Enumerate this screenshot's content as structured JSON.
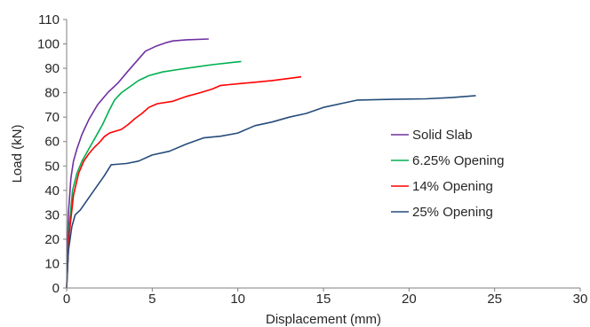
{
  "chart_data": {
    "type": "line",
    "title": "",
    "xlabel": "Displacement (mm)",
    "ylabel": "Load (kN)",
    "xlim": [
      0,
      30
    ],
    "ylim": [
      0,
      110
    ],
    "x_ticks": [
      0,
      5,
      10,
      15,
      20,
      25,
      30
    ],
    "y_ticks": [
      0,
      10,
      20,
      30,
      40,
      50,
      60,
      70,
      80,
      90,
      100,
      110
    ],
    "grid": false,
    "legend_position": "center-right",
    "series": [
      {
        "name": "Solid Slab",
        "color": "#7030A0",
        "points": [
          [
            0,
            0
          ],
          [
            0.1,
            30
          ],
          [
            0.25,
            45
          ],
          [
            0.4,
            52
          ],
          [
            0.6,
            57
          ],
          [
            0.9,
            63
          ],
          [
            1.3,
            69
          ],
          [
            1.8,
            75
          ],
          [
            2.4,
            80
          ],
          [
            3,
            84
          ],
          [
            3.6,
            89
          ],
          [
            4.1,
            93
          ],
          [
            4.6,
            97
          ],
          [
            5.2,
            99
          ],
          [
            5.8,
            100.5
          ],
          [
            6.2,
            101.2
          ],
          [
            7,
            101.7
          ],
          [
            8.3,
            102
          ]
        ]
      },
      {
        "name": "6.25% Opening",
        "color": "#00B050",
        "points": [
          [
            0,
            0
          ],
          [
            0.15,
            25
          ],
          [
            0.35,
            40
          ],
          [
            0.6,
            47
          ],
          [
            0.9,
            52
          ],
          [
            1.3,
            57
          ],
          [
            1.7,
            62
          ],
          [
            2.1,
            67
          ],
          [
            2.5,
            73
          ],
          [
            2.8,
            77
          ],
          [
            3.2,
            80
          ],
          [
            3.6,
            82
          ],
          [
            4.2,
            85
          ],
          [
            4.8,
            87
          ],
          [
            5.6,
            88.5
          ],
          [
            6.5,
            89.5
          ],
          [
            7.5,
            90.5
          ],
          [
            8.5,
            91.5
          ],
          [
            9.5,
            92.3
          ],
          [
            10.2,
            92.8
          ]
        ]
      },
      {
        "name": "14% Opening",
        "color": "#FF0000",
        "points": [
          [
            0,
            0
          ],
          [
            0.15,
            22
          ],
          [
            0.4,
            38
          ],
          [
            0.7,
            47
          ],
          [
            1,
            52
          ],
          [
            1.3,
            55
          ],
          [
            1.6,
            57.5
          ],
          [
            1.9,
            59.5
          ],
          [
            2.2,
            62
          ],
          [
            2.5,
            63.5
          ],
          [
            3.2,
            65
          ],
          [
            3.6,
            67
          ],
          [
            4,
            69.5
          ],
          [
            4.4,
            71.5
          ],
          [
            4.8,
            74
          ],
          [
            5.3,
            75.5
          ],
          [
            6.2,
            76.5
          ],
          [
            7,
            78.5
          ],
          [
            7.8,
            80
          ],
          [
            8.5,
            81.5
          ],
          [
            9,
            83
          ],
          [
            10.2,
            83.8
          ],
          [
            11,
            84.3
          ],
          [
            12,
            85
          ],
          [
            13.7,
            86.5
          ]
        ]
      },
      {
        "name": "25% Opening",
        "color": "#254B7A",
        "points": [
          [
            0,
            0
          ],
          [
            0.1,
            15
          ],
          [
            0.3,
            25
          ],
          [
            0.5,
            30
          ],
          [
            0.8,
            32
          ],
          [
            1.1,
            35
          ],
          [
            1.6,
            40
          ],
          [
            2.2,
            46
          ],
          [
            2.6,
            50.5
          ],
          [
            3.5,
            51
          ],
          [
            4.2,
            52
          ],
          [
            5,
            54.5
          ],
          [
            6,
            56
          ],
          [
            7,
            59
          ],
          [
            8,
            61.5
          ],
          [
            9,
            62.2
          ],
          [
            10,
            63.5
          ],
          [
            11,
            66.5
          ],
          [
            12,
            68
          ],
          [
            13,
            70
          ],
          [
            14,
            71.5
          ],
          [
            15,
            74
          ],
          [
            16,
            75.5
          ],
          [
            17,
            77
          ],
          [
            19,
            77.3
          ],
          [
            21,
            77.5
          ],
          [
            22.5,
            78
          ],
          [
            23.9,
            78.8
          ]
        ]
      }
    ]
  }
}
